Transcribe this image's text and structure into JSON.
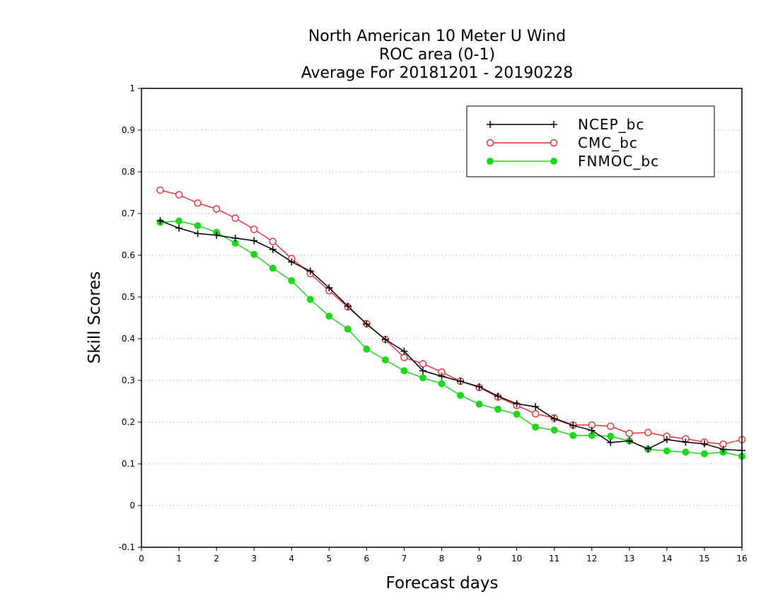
{
  "chart_data": {
    "type": "line",
    "title_lines": [
      "North American 10 Meter U Wind",
      "ROC area (0-1)",
      "Average For 20181201 - 20190228"
    ],
    "xlabel": "Forecast days",
    "ylabel": "Skill Scores",
    "xlim": [
      0,
      16
    ],
    "ylim": [
      -0.1,
      1
    ],
    "x_ticks": [
      0,
      1,
      2,
      3,
      4,
      5,
      6,
      7,
      8,
      9,
      10,
      11,
      12,
      13,
      14,
      15,
      16
    ],
    "y_ticks": [
      -0.1,
      0,
      0.1,
      0.2,
      0.3,
      0.4,
      0.5,
      0.6,
      0.7,
      0.8,
      0.9,
      1
    ],
    "y_tick_labels": [
      "-0.1",
      "0",
      "0.1",
      "0.2",
      "0.3",
      "0.4",
      "0.5",
      "0.6",
      "0.7",
      "0.8",
      "0.9",
      "1"
    ],
    "grid": "horizontal dotted",
    "legend_position": "top-right",
    "x": [
      0.5,
      1,
      1.5,
      2,
      2.5,
      3,
      3.5,
      4,
      4.5,
      5,
      5.5,
      6,
      6.5,
      7,
      7.5,
      8,
      8.5,
      9,
      9.5,
      10,
      10.5,
      11,
      11.5,
      12,
      12.5,
      13,
      13.5,
      14,
      14.5,
      15,
      15.5,
      16
    ],
    "series": [
      {
        "name": "NCEP_bc",
        "color": "#000000",
        "marker": "plus",
        "values": [
          0.683,
          0.665,
          0.652,
          0.648,
          0.641,
          0.635,
          0.614,
          0.584,
          0.562,
          0.522,
          0.478,
          0.435,
          0.398,
          0.37,
          0.323,
          0.31,
          0.298,
          0.285,
          0.262,
          0.244,
          0.237,
          0.208,
          0.192,
          0.18,
          0.151,
          0.155,
          0.136,
          0.158,
          0.152,
          0.148,
          0.135,
          0.132
        ]
      },
      {
        "name": "CMC_bc",
        "color": "#e8343a",
        "marker": "open-circle",
        "values": [
          0.756,
          0.745,
          0.725,
          0.711,
          0.689,
          0.662,
          0.633,
          0.592,
          0.556,
          0.515,
          0.476,
          0.436,
          0.398,
          0.355,
          0.34,
          0.32,
          0.298,
          0.283,
          0.26,
          0.24,
          0.22,
          0.21,
          0.193,
          0.193,
          0.19,
          0.173,
          0.175,
          0.166,
          0.16,
          0.152,
          0.147,
          0.158
        ]
      },
      {
        "name": "FNMOC_bc",
        "color": "#1ed81e",
        "marker": "filled-circle",
        "values": [
          0.679,
          0.682,
          0.671,
          0.655,
          0.629,
          0.602,
          0.569,
          0.539,
          0.494,
          0.454,
          0.423,
          0.375,
          0.349,
          0.323,
          0.306,
          0.292,
          0.264,
          0.243,
          0.231,
          0.219,
          0.188,
          0.181,
          0.168,
          0.168,
          0.166,
          0.155,
          0.135,
          0.131,
          0.128,
          0.124,
          0.128,
          0.118
        ]
      }
    ]
  }
}
